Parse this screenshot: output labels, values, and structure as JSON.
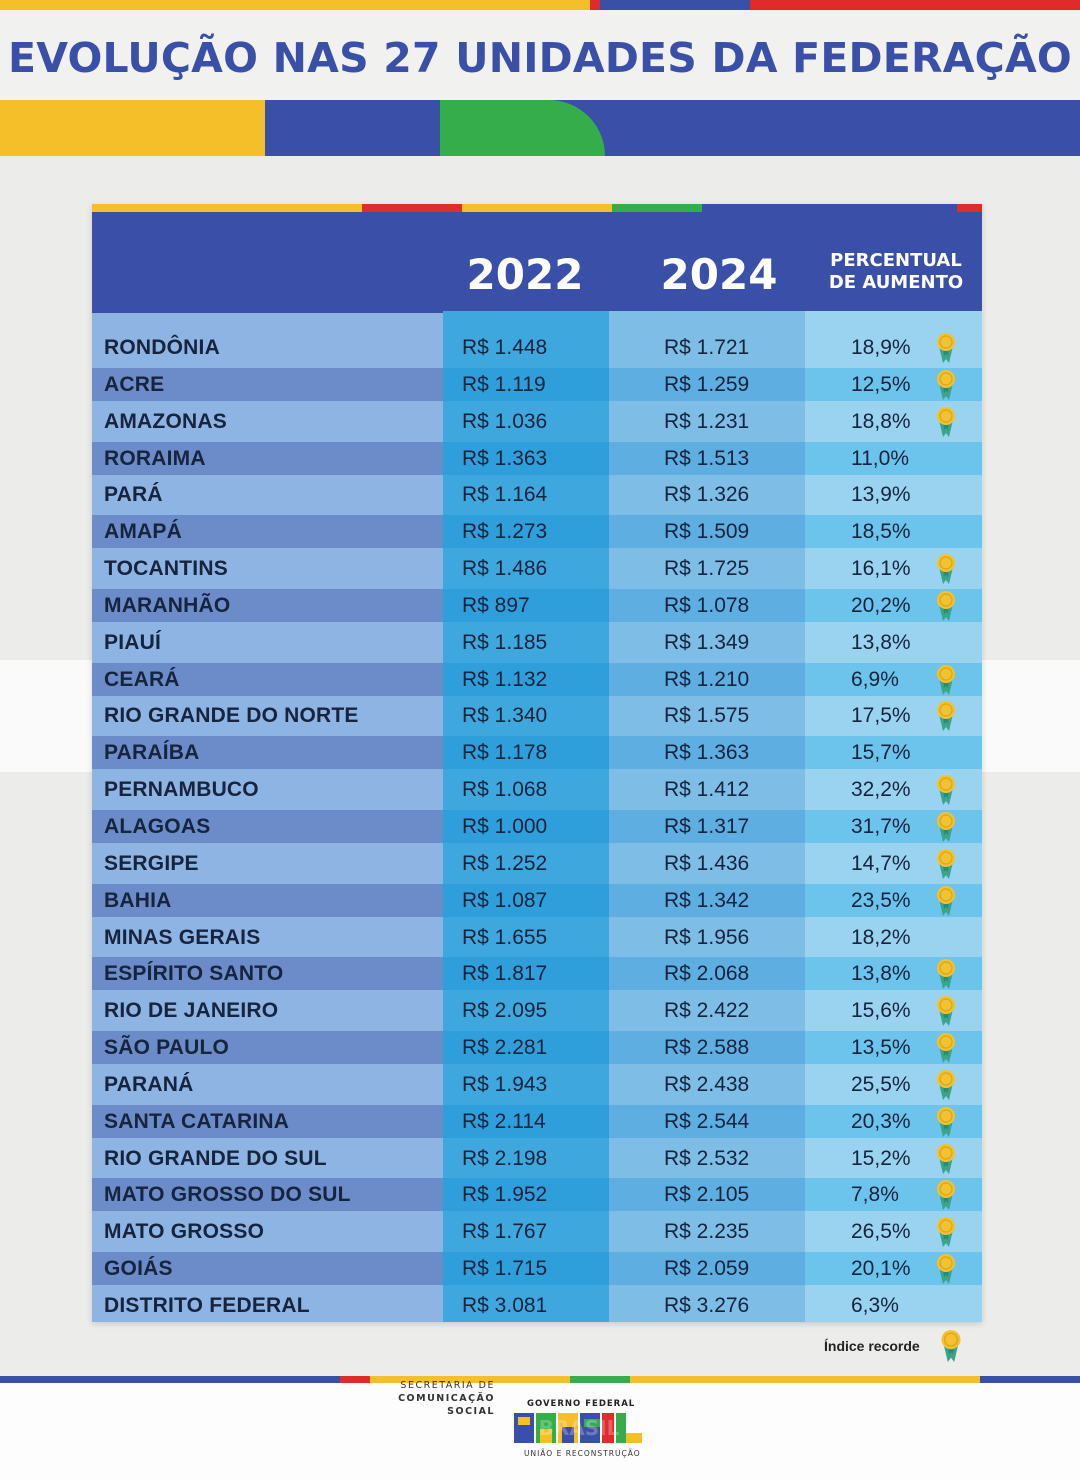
{
  "title": "EVOLUÇÃO NAS 27 UNIDADES DA FEDERAÇÃO",
  "colors": {
    "blue": "#3a4fa8",
    "yellow": "#f5bf2a",
    "green": "#36ad4b",
    "red": "#e02b2b",
    "medal_gold": "#f2c230",
    "medal_ribbon": "#3aa58a"
  },
  "table": {
    "headers": {
      "year_2022": "2022",
      "year_2024": "2024",
      "pct_line1": "PERCENTUAL",
      "pct_line2": "DE AUMENTO"
    },
    "rows": [
      {
        "uf": "RONDÔNIA",
        "v2022": "R$ 1.448",
        "v2024": "R$ 1.721",
        "pct": "18,9%",
        "record": true
      },
      {
        "uf": "ACRE",
        "v2022": "R$ 1.119",
        "v2024": "R$ 1.259",
        "pct": "12,5%",
        "record": true
      },
      {
        "uf": "AMAZONAS",
        "v2022": "R$ 1.036",
        "v2024": "R$ 1.231",
        "pct": "18,8%",
        "record": true
      },
      {
        "uf": "RORAIMA",
        "v2022": "R$ 1.363",
        "v2024": "R$ 1.513",
        "pct": "11,0%",
        "record": false
      },
      {
        "uf": "PARÁ",
        "v2022": "R$ 1.164",
        "v2024": "R$ 1.326",
        "pct": "13,9%",
        "record": false
      },
      {
        "uf": "AMAPÁ",
        "v2022": "R$ 1.273",
        "v2024": "R$ 1.509",
        "pct": "18,5%",
        "record": false
      },
      {
        "uf": "TOCANTINS",
        "v2022": "R$ 1.486",
        "v2024": "R$ 1.725",
        "pct": "16,1%",
        "record": true
      },
      {
        "uf": "MARANHÃO",
        "v2022": "R$ 897",
        "v2024": "R$ 1.078",
        "pct": "20,2%",
        "record": true
      },
      {
        "uf": "PIAUÍ",
        "v2022": "R$ 1.185",
        "v2024": "R$ 1.349",
        "pct": "13,8%",
        "record": false
      },
      {
        "uf": "CEARÁ",
        "v2022": "R$ 1.132",
        "v2024": "R$ 1.210",
        "pct": "6,9%",
        "record": true
      },
      {
        "uf": "RIO GRANDE DO NORTE",
        "v2022": "R$ 1.340",
        "v2024": "R$ 1.575",
        "pct": "17,5%",
        "record": true
      },
      {
        "uf": "PARAÍBA",
        "v2022": "R$ 1.178",
        "v2024": "R$ 1.363",
        "pct": "15,7%",
        "record": false
      },
      {
        "uf": "PERNAMBUCO",
        "v2022": "R$ 1.068",
        "v2024": "R$ 1.412",
        "pct": "32,2%",
        "record": true
      },
      {
        "uf": "ALAGOAS",
        "v2022": "R$ 1.000",
        "v2024": "R$ 1.317",
        "pct": "31,7%",
        "record": true
      },
      {
        "uf": "SERGIPE",
        "v2022": "R$ 1.252",
        "v2024": "R$ 1.436",
        "pct": "14,7%",
        "record": true
      },
      {
        "uf": "BAHIA",
        "v2022": "R$ 1.087",
        "v2024": "R$ 1.342",
        "pct": "23,5%",
        "record": true
      },
      {
        "uf": "MINAS GERAIS",
        "v2022": "R$ 1.655",
        "v2024": "R$ 1.956",
        "pct": "18,2%",
        "record": false
      },
      {
        "uf": "ESPÍRITO SANTO",
        "v2022": "R$ 1.817",
        "v2024": "R$ 2.068",
        "pct": "13,8%",
        "record": true
      },
      {
        "uf": "RIO DE JANEIRO",
        "v2022": "R$ 2.095",
        "v2024": "R$ 2.422",
        "pct": "15,6%",
        "record": true
      },
      {
        "uf": "SÃO PAULO",
        "v2022": "R$ 2.281",
        "v2024": "R$ 2.588",
        "pct": "13,5%",
        "record": true
      },
      {
        "uf": "PARANÁ",
        "v2022": "R$ 1.943",
        "v2024": "R$ 2.438",
        "pct": "25,5%",
        "record": true
      },
      {
        "uf": "SANTA CATARINA",
        "v2022": "R$ 2.114",
        "v2024": "R$ 2.544",
        "pct": "20,3%",
        "record": true
      },
      {
        "uf": "RIO GRANDE DO SUL",
        "v2022": "R$ 2.198",
        "v2024": "R$ 2.532",
        "pct": "15,2%",
        "record": true
      },
      {
        "uf": "MATO GROSSO DO SUL",
        "v2022": "R$ 1.952",
        "v2024": "R$ 2.105",
        "pct": "7,8%",
        "record": true
      },
      {
        "uf": "MATO GROSSO",
        "v2022": "R$ 1.767",
        "v2024": "R$ 2.235",
        "pct": "26,5%",
        "record": true
      },
      {
        "uf": "GOIÁS",
        "v2022": "R$ 1.715",
        "v2024": "R$ 2.059",
        "pct": "20,1%",
        "record": true
      },
      {
        "uf": "DISTRITO FEDERAL",
        "v2022": "R$ 3.081",
        "v2024": "R$ 3.276",
        "pct": "6,3%",
        "record": false
      }
    ]
  },
  "legend": {
    "label": "Índice recorde",
    "icon": "medal-icon"
  },
  "footer": {
    "secom_line1": "SECRETARIA DE",
    "secom_line2": "COMUNICAÇÃO SOCIAL",
    "gov_top": "GOVERNO FEDERAL",
    "brasil_logo": "BRASIL",
    "gov_bottom": "UNIÃO E RECONSTRUÇÃO"
  }
}
